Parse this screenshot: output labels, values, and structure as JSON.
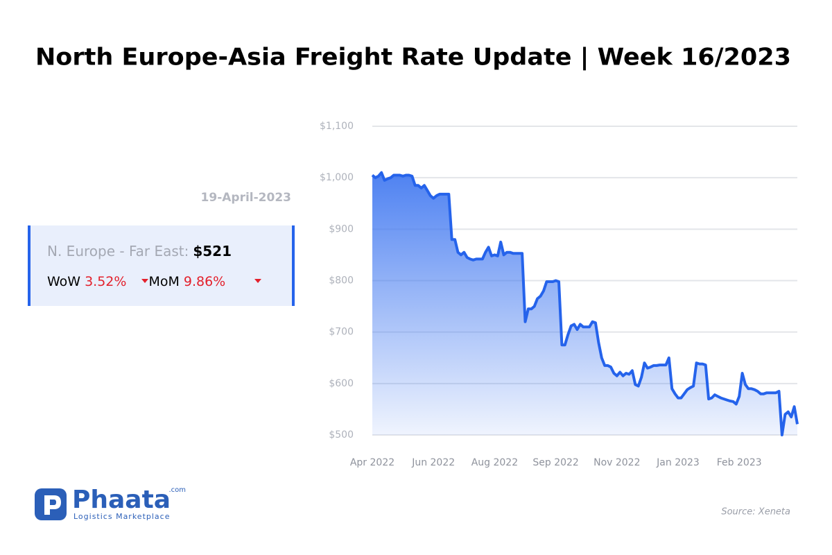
{
  "header": {
    "title": "North Europe-Asia Freight Rate Update | Week 16/2023",
    "date": "19-April-2023"
  },
  "card": {
    "label": "N. Europe - Far East:",
    "price": "$521",
    "wow_label": "WoW",
    "wow": "3.52%",
    "mom_label": "MoM",
    "mom": "9.86%"
  },
  "logo": {
    "name": "Phaata",
    "domain": ".com",
    "tagline": "Logistics Marketplace"
  },
  "source": "Source: Xeneta",
  "chart_data": {
    "type": "area",
    "color": "#2563eb",
    "grid": true,
    "categories": [
      "Apr 2022",
      null,
      null,
      null,
      null,
      null,
      null,
      null,
      null,
      null,
      null,
      null,
      null,
      null,
      null,
      null,
      null,
      null,
      null,
      null,
      "Jun 2022",
      null,
      null,
      null,
      null,
      null,
      null,
      null,
      null,
      null,
      null,
      null,
      null,
      null,
      null,
      null,
      null,
      null,
      null,
      null,
      "Aug 2022",
      null,
      null,
      null,
      null,
      null,
      null,
      null,
      null,
      null,
      null,
      null,
      null,
      null,
      null,
      null,
      null,
      null,
      null,
      null,
      "Sep 2022",
      null,
      null,
      null,
      null,
      null,
      null,
      null,
      null,
      null,
      null,
      null,
      null,
      null,
      null,
      null,
      null,
      null,
      null,
      null,
      "Nov 2022",
      null,
      null,
      null,
      null,
      null,
      null,
      null,
      null,
      null,
      null,
      null,
      null,
      null,
      null,
      null,
      null,
      null,
      null,
      null,
      "Jan 2023",
      null,
      null,
      null,
      null,
      null,
      null,
      null,
      null,
      null,
      null,
      null,
      null,
      null,
      null,
      null,
      null,
      null,
      null,
      null,
      "Feb 2023",
      null,
      null,
      null,
      null,
      null,
      null,
      null,
      null,
      null,
      null,
      null,
      null,
      null,
      null,
      null,
      null,
      null,
      null,
      null
    ],
    "values": [
      1005,
      1000,
      1003,
      1010,
      995,
      998,
      1000,
      1005,
      1005,
      1005,
      1003,
      1005,
      1005,
      1003,
      985,
      985,
      980,
      985,
      975,
      965,
      960,
      965,
      968,
      968,
      968,
      968,
      880,
      880,
      855,
      850,
      855,
      845,
      842,
      840,
      842,
      842,
      842,
      855,
      865,
      848,
      850,
      848,
      875,
      850,
      855,
      855,
      853,
      853,
      853,
      853,
      720,
      745,
      745,
      750,
      765,
      770,
      780,
      798,
      798,
      798,
      800,
      798,
      675,
      675,
      695,
      712,
      715,
      705,
      715,
      710,
      710,
      710,
      720,
      718,
      680,
      650,
      635,
      635,
      632,
      620,
      615,
      622,
      615,
      620,
      618,
      625,
      598,
      595,
      612,
      640,
      630,
      632,
      635,
      635,
      636,
      636,
      636,
      650,
      590,
      580,
      572,
      572,
      580,
      588,
      592,
      595,
      640,
      638,
      638,
      636,
      570,
      572,
      578,
      575,
      572,
      570,
      568,
      566,
      565,
      560,
      575,
      620,
      598,
      590,
      590,
      588,
      585,
      580,
      580,
      582,
      582,
      582,
      582,
      585,
      500,
      540,
      545,
      535,
      555,
      521
    ],
    "ylim": [
      500,
      1100
    ],
    "yticks": [
      {
        "value": 500,
        "label": "$500"
      },
      {
        "value": 600,
        "label": "$600"
      },
      {
        "value": 700,
        "label": "$700"
      },
      {
        "value": 800,
        "label": "$800"
      },
      {
        "value": 900,
        "label": "$900"
      },
      {
        "value": 1000,
        "label": "$1,000"
      },
      {
        "value": 1100,
        "label": "$1,100"
      }
    ]
  }
}
